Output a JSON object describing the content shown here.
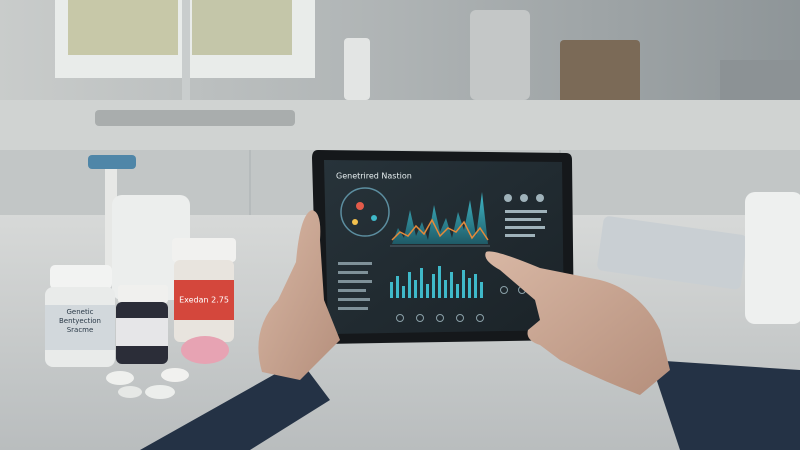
{
  "tablet": {
    "title": "Genetrired Nastion"
  },
  "bottles": {
    "left_label": "Genetic Bentyection Sracme",
    "red_label": "Exedan 2.75"
  }
}
